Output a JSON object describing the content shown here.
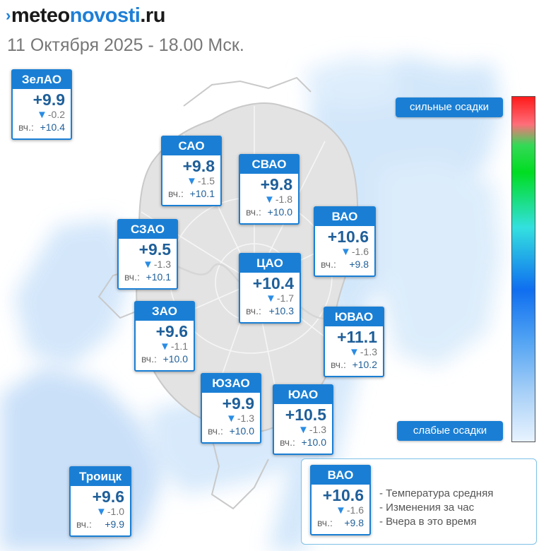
{
  "brand": {
    "mark": "›",
    "part1": "meteo",
    "part2": "novosti",
    "part3": ".ru"
  },
  "date": "11 Октября 2025 - 18.00 Мск.",
  "yesterday_prefix": "вч.:",
  "districts": [
    {
      "id": "zelao",
      "name": "ЗелАО",
      "temp": "+9.9",
      "change": "-0.2",
      "yesterday": "+10.4"
    },
    {
      "id": "sao",
      "name": "САО",
      "temp": "+9.8",
      "change": "-1.5",
      "yesterday": "+10.1"
    },
    {
      "id": "svao",
      "name": "СВАО",
      "temp": "+9.8",
      "change": "-1.8",
      "yesterday": "+10.0"
    },
    {
      "id": "szao",
      "name": "СЗАО",
      "temp": "+9.5",
      "change": "-1.3",
      "yesterday": "+10.1"
    },
    {
      "id": "vao",
      "name": "ВАО",
      "temp": "+10.6",
      "change": "-1.6",
      "yesterday": "+9.8"
    },
    {
      "id": "cao",
      "name": "ЦАО",
      "temp": "+10.4",
      "change": "-1.7",
      "yesterday": "+10.3"
    },
    {
      "id": "zao",
      "name": "ЗАО",
      "temp": "+9.6",
      "change": "-1.1",
      "yesterday": "+10.0"
    },
    {
      "id": "yuvao",
      "name": "ЮВАО",
      "temp": "+11.1",
      "change": "-1.3",
      "yesterday": "+10.2"
    },
    {
      "id": "yuzao",
      "name": "ЮЗАО",
      "temp": "+9.9",
      "change": "-1.3",
      "yesterday": "+10.0"
    },
    {
      "id": "yuao",
      "name": "ЮАО",
      "temp": "+10.5",
      "change": "-1.3",
      "yesterday": "+10.0"
    },
    {
      "id": "troitsk",
      "name": "Троицк",
      "temp": "+9.6",
      "change": "-1.0",
      "yesterday": "+9.9"
    }
  ],
  "precip_scale": {
    "strong_label": "сильные осадки",
    "weak_label": "слабые осадки"
  },
  "legend": {
    "sample": {
      "name": "ВАО",
      "temp": "+10.6",
      "change": "-1.6",
      "yesterday": "+9.8"
    },
    "items": [
      "- Температура средняя",
      "- Изменения за час",
      "- Вчера в это время"
    ]
  },
  "colors": {
    "accent": "#1a7fd4",
    "temp_text": "#1f5f99",
    "arrow": "#2a8ce4",
    "precip_light": "#cfe6fb"
  }
}
